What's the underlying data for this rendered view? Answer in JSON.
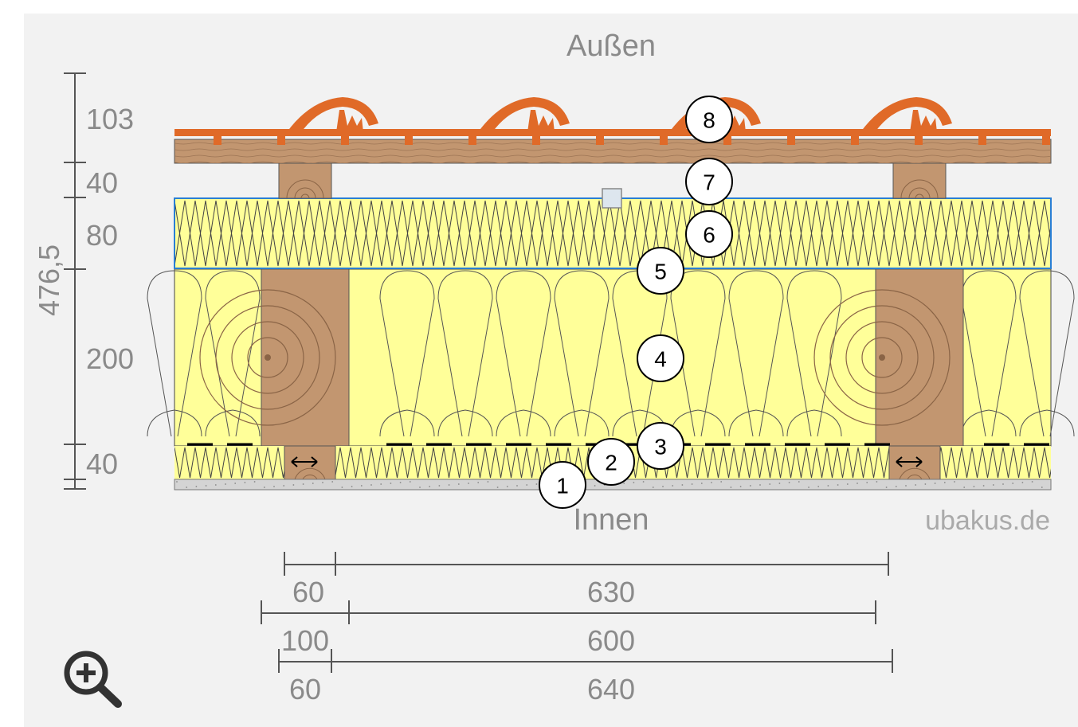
{
  "labels": {
    "outside": "Außen",
    "inside": "Innen",
    "watermark": "ubakus.de",
    "total_thickness": "476,5"
  },
  "layer_thicknesses": [
    "103",
    "40",
    "80",
    "200",
    "40"
  ],
  "bottom_dimensions": {
    "row1": [
      "60",
      "630"
    ],
    "row2": [
      "100",
      "600"
    ],
    "row3": [
      "60",
      "640"
    ]
  },
  "layer_markers": [
    "1",
    "2",
    "3",
    "4",
    "5",
    "6",
    "7",
    "8"
  ],
  "icons": {
    "zoom": "zoom-in-icon",
    "arrow": "horizontal-double-arrow-icon",
    "handle": "selection-handle-icon"
  },
  "colors": {
    "background": "#f2f2f2",
    "insulation": "#ffff99",
    "wood": "#c29670",
    "tile": "#e06a28",
    "selection": "#2a7fd4",
    "plaster": "#d4d4d4",
    "text": "#8a8a8a"
  }
}
